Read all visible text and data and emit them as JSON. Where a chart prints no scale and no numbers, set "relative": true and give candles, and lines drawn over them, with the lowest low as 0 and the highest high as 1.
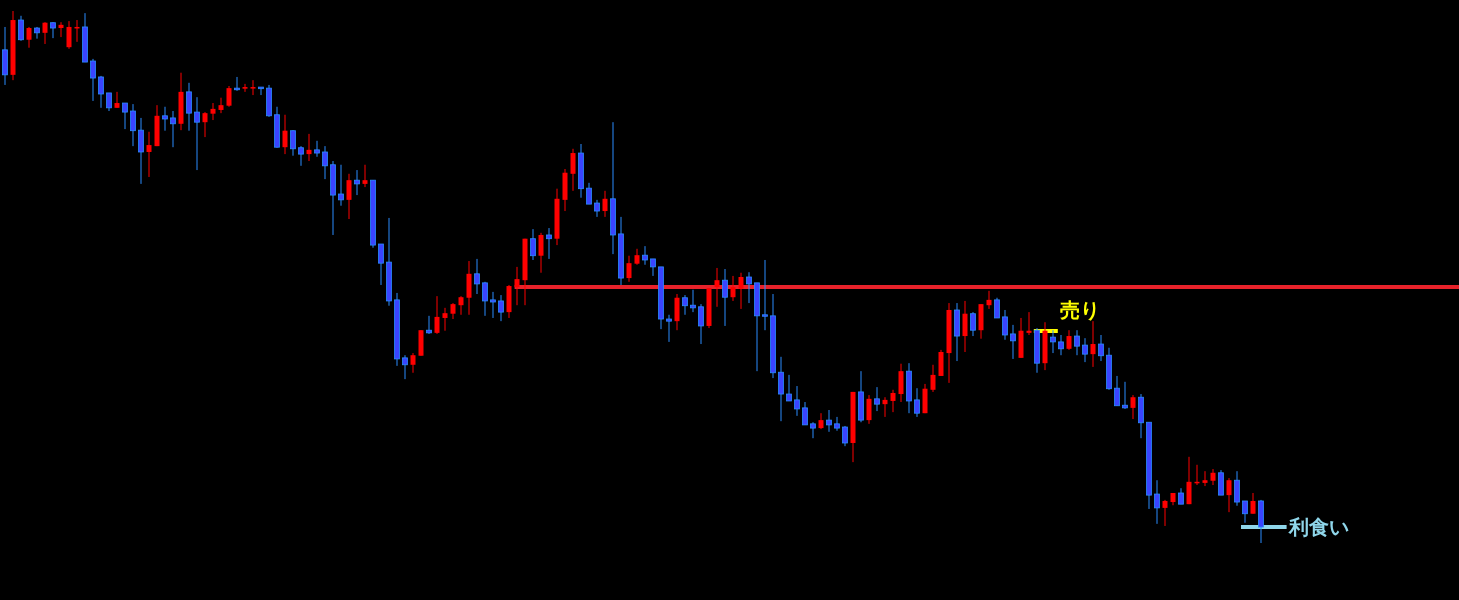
{
  "chart_data": {
    "type": "candlestick",
    "relative": true,
    "categories": [
      null,
      null,
      null,
      null,
      null,
      null,
      null,
      null,
      null,
      null,
      null,
      null,
      null,
      null,
      null,
      null,
      null,
      null,
      null,
      null,
      null,
      null,
      null,
      null,
      null,
      null,
      null,
      null,
      null,
      null,
      null,
      null,
      null,
      null,
      null,
      null,
      null,
      null,
      null,
      null,
      null,
      null,
      null,
      null,
      null,
      null,
      null,
      null,
      null,
      null,
      null,
      null,
      null,
      null,
      null,
      null,
      null,
      null,
      null,
      null,
      null,
      null,
      null,
      null,
      null,
      null,
      null,
      null,
      null,
      null,
      null,
      null,
      null,
      null,
      null,
      null,
      null,
      null,
      null,
      null,
      null,
      null,
      null,
      null,
      null,
      null,
      null,
      null,
      null,
      null,
      null,
      null,
      null,
      null,
      null,
      null,
      null,
      null,
      null,
      null,
      null,
      null,
      null,
      null,
      null,
      null,
      null,
      null,
      null,
      null,
      null,
      null,
      null,
      null,
      null,
      null,
      null,
      null,
      null,
      null,
      null,
      null,
      null,
      null,
      null,
      null,
      null,
      null,
      null,
      null,
      null,
      null,
      null,
      null,
      null,
      null,
      null,
      null,
      null,
      null,
      null,
      null,
      null,
      null,
      null,
      null,
      null,
      null,
      null,
      null,
      null,
      null,
      null,
      null,
      null,
      null,
      null,
      null
    ],
    "ohlc": [
      [
        0.927,
        0.97,
        0.861,
        0.88
      ],
      [
        0.88,
        1.0,
        0.87,
        0.983
      ],
      [
        0.983,
        0.991,
        0.944,
        0.946
      ],
      [
        0.946,
        0.97,
        0.931,
        0.968
      ],
      [
        0.968,
        0.97,
        0.948,
        0.959
      ],
      [
        0.959,
        0.979,
        0.938,
        0.978
      ],
      [
        0.978,
        0.979,
        0.949,
        0.968
      ],
      [
        0.968,
        0.979,
        0.951,
        0.974
      ],
      [
        0.932,
        0.981,
        0.929,
        0.97
      ],
      [
        0.968,
        0.983,
        0.942,
        0.97
      ],
      [
        0.97,
        0.996,
        0.904,
        0.904
      ],
      [
        0.906,
        0.91,
        0.831,
        0.874
      ],
      [
        0.876,
        0.878,
        0.818,
        0.844
      ],
      [
        0.846,
        0.846,
        0.812,
        0.818
      ],
      [
        0.818,
        0.848,
        0.818,
        0.827
      ],
      [
        0.827,
        0.827,
        0.778,
        0.81
      ],
      [
        0.812,
        0.825,
        0.746,
        0.775
      ],
      [
        0.776,
        0.799,
        0.675,
        0.735
      ],
      [
        0.735,
        0.773,
        0.688,
        0.748
      ],
      [
        0.746,
        0.823,
        0.746,
        0.803
      ],
      [
        0.803,
        0.82,
        0.775,
        0.797
      ],
      [
        0.799,
        0.812,
        0.744,
        0.788
      ],
      [
        0.788,
        0.884,
        0.776,
        0.848
      ],
      [
        0.848,
        0.865,
        0.775,
        0.808
      ],
      [
        0.81,
        0.838,
        0.701,
        0.791
      ],
      [
        0.791,
        0.81,
        0.763,
        0.808
      ],
      [
        0.807,
        0.827,
        0.795,
        0.816
      ],
      [
        0.814,
        0.837,
        0.808,
        0.823
      ],
      [
        0.822,
        0.859,
        0.82,
        0.855
      ],
      [
        0.855,
        0.876,
        0.85,
        0.852
      ],
      [
        0.854,
        0.863,
        0.848,
        0.857
      ],
      [
        0.855,
        0.87,
        0.842,
        0.857
      ],
      [
        0.857,
        0.857,
        0.842,
        0.854
      ],
      [
        0.855,
        0.861,
        0.801,
        0.803
      ],
      [
        0.805,
        0.82,
        0.743,
        0.744
      ],
      [
        0.744,
        0.805,
        0.731,
        0.775
      ],
      [
        0.775,
        0.776,
        0.728,
        0.741
      ],
      [
        0.743,
        0.746,
        0.709,
        0.731
      ],
      [
        0.731,
        0.769,
        0.718,
        0.739
      ],
      [
        0.739,
        0.756,
        0.726,
        0.733
      ],
      [
        0.735,
        0.746,
        0.684,
        0.709
      ],
      [
        0.711,
        0.718,
        0.579,
        0.654
      ],
      [
        0.656,
        0.711,
        0.634,
        0.645
      ],
      [
        0.645,
        0.694,
        0.609,
        0.682
      ],
      [
        0.682,
        0.701,
        0.654,
        0.675
      ],
      [
        0.675,
        0.711,
        0.669,
        0.682
      ],
      [
        0.682,
        0.682,
        0.555,
        0.56
      ],
      [
        0.562,
        0.562,
        0.485,
        0.526
      ],
      [
        0.528,
        0.611,
        0.446,
        0.455
      ],
      [
        0.457,
        0.47,
        0.333,
        0.346
      ],
      [
        0.348,
        0.353,
        0.308,
        0.335
      ],
      [
        0.335,
        0.357,
        0.32,
        0.353
      ],
      [
        0.352,
        0.4,
        0.352,
        0.4
      ],
      [
        0.4,
        0.427,
        0.393,
        0.395
      ],
      [
        0.395,
        0.464,
        0.393,
        0.425
      ],
      [
        0.423,
        0.442,
        0.399,
        0.432
      ],
      [
        0.431,
        0.451,
        0.421,
        0.449
      ],
      [
        0.447,
        0.464,
        0.429,
        0.462
      ],
      [
        0.461,
        0.53,
        0.429,
        0.506
      ],
      [
        0.506,
        0.534,
        0.468,
        0.487
      ],
      [
        0.489,
        0.491,
        0.427,
        0.455
      ],
      [
        0.457,
        0.472,
        0.423,
        0.453
      ],
      [
        0.455,
        0.466,
        0.417,
        0.434
      ],
      [
        0.434,
        0.485,
        0.423,
        0.483
      ],
      [
        0.481,
        0.519,
        0.447,
        0.496
      ],
      [
        0.494,
        0.572,
        0.447,
        0.572
      ],
      [
        0.572,
        0.59,
        0.532,
        0.54
      ],
      [
        0.54,
        0.583,
        0.508,
        0.579
      ],
      [
        0.579,
        0.592,
        0.534,
        0.572
      ],
      [
        0.572,
        0.666,
        0.56,
        0.647
      ],
      [
        0.645,
        0.703,
        0.624,
        0.696
      ],
      [
        0.694,
        0.741,
        0.662,
        0.733
      ],
      [
        0.733,
        0.75,
        0.649,
        0.666
      ],
      [
        0.667,
        0.677,
        0.637,
        0.637
      ],
      [
        0.639,
        0.645,
        0.613,
        0.624
      ],
      [
        0.624,
        0.662,
        0.613,
        0.647
      ],
      [
        0.647,
        0.791,
        0.543,
        0.579
      ],
      [
        0.581,
        0.613,
        0.485,
        0.498
      ],
      [
        0.498,
        0.54,
        0.491,
        0.526
      ],
      [
        0.525,
        0.553,
        0.523,
        0.541
      ],
      [
        0.541,
        0.558,
        0.523,
        0.532
      ],
      [
        0.534,
        0.534,
        0.502,
        0.519
      ],
      [
        0.519,
        0.519,
        0.402,
        0.421
      ],
      [
        0.421,
        0.429,
        0.378,
        0.417
      ],
      [
        0.417,
        0.468,
        0.4,
        0.461
      ],
      [
        0.461,
        0.466,
        0.429,
        0.446
      ],
      [
        0.447,
        0.476,
        0.434,
        0.442
      ],
      [
        0.444,
        0.449,
        0.374,
        0.408
      ],
      [
        0.408,
        0.479,
        0.404,
        0.479
      ],
      [
        0.481,
        0.517,
        0.444,
        0.494
      ],
      [
        0.494,
        0.515,
        0.408,
        0.462
      ],
      [
        0.462,
        0.502,
        0.455,
        0.481
      ],
      [
        0.478,
        0.508,
        0.44,
        0.5
      ],
      [
        0.5,
        0.509,
        0.451,
        0.487
      ],
      [
        0.489,
        0.489,
        0.323,
        0.427
      ],
      [
        0.429,
        0.532,
        0.4,
        0.427
      ],
      [
        0.427,
        0.468,
        0.31,
        0.32
      ],
      [
        0.321,
        0.35,
        0.229,
        0.28
      ],
      [
        0.28,
        0.316,
        0.267,
        0.267
      ],
      [
        0.269,
        0.295,
        0.239,
        0.252
      ],
      [
        0.254,
        0.265,
        0.222,
        0.222
      ],
      [
        0.224,
        0.227,
        0.197,
        0.216
      ],
      [
        0.216,
        0.244,
        0.214,
        0.231
      ],
      [
        0.231,
        0.25,
        0.209,
        0.222
      ],
      [
        0.224,
        0.237,
        0.211,
        0.216
      ],
      [
        0.218,
        0.22,
        0.182,
        0.188
      ],
      [
        0.188,
        0.284,
        0.152,
        0.284
      ],
      [
        0.284,
        0.323,
        0.227,
        0.231
      ],
      [
        0.231,
        0.278,
        0.224,
        0.271
      ],
      [
        0.271,
        0.293,
        0.248,
        0.261
      ],
      [
        0.261,
        0.274,
        0.237,
        0.269
      ],
      [
        0.267,
        0.288,
        0.246,
        0.282
      ],
      [
        0.28,
        0.337,
        0.265,
        0.323
      ],
      [
        0.323,
        0.338,
        0.244,
        0.267
      ],
      [
        0.269,
        0.291,
        0.237,
        0.244
      ],
      [
        0.244,
        0.299,
        0.244,
        0.29
      ],
      [
        0.288,
        0.335,
        0.284,
        0.316
      ],
      [
        0.314,
        0.363,
        0.314,
        0.359
      ],
      [
        0.357,
        0.451,
        0.301,
        0.438
      ],
      [
        0.438,
        0.451,
        0.342,
        0.389
      ],
      [
        0.389,
        0.455,
        0.359,
        0.431
      ],
      [
        0.431,
        0.434,
        0.389,
        0.4
      ],
      [
        0.4,
        0.449,
        0.384,
        0.449
      ],
      [
        0.447,
        0.474,
        0.44,
        0.457
      ],
      [
        0.457,
        0.461,
        0.423,
        0.423
      ],
      [
        0.425,
        0.438,
        0.382,
        0.391
      ],
      [
        0.393,
        0.41,
        0.346,
        0.38
      ],
      [
        0.348,
        0.423,
        0.348,
        0.399
      ],
      [
        0.395,
        0.434,
        0.391,
        0.399
      ],
      [
        0.4,
        0.404,
        0.32,
        0.338
      ],
      [
        0.338,
        0.415,
        0.325,
        0.399
      ],
      [
        0.387,
        0.4,
        0.357,
        0.378
      ],
      [
        0.378,
        0.391,
        0.353,
        0.365
      ],
      [
        0.365,
        0.4,
        0.363,
        0.389
      ],
      [
        0.389,
        0.4,
        0.353,
        0.37
      ],
      [
        0.372,
        0.385,
        0.34,
        0.355
      ],
      [
        0.355,
        0.417,
        0.331,
        0.374
      ],
      [
        0.374,
        0.391,
        0.342,
        0.352
      ],
      [
        0.353,
        0.367,
        0.288,
        0.29
      ],
      [
        0.291,
        0.314,
        0.258,
        0.258
      ],
      [
        0.259,
        0.303,
        0.252,
        0.254
      ],
      [
        0.254,
        0.278,
        0.233,
        0.274
      ],
      [
        0.274,
        0.28,
        0.197,
        0.226
      ],
      [
        0.227,
        0.227,
        0.064,
        0.09
      ],
      [
        0.092,
        0.118,
        0.036,
        0.066
      ],
      [
        0.066,
        0.081,
        0.032,
        0.079
      ],
      [
        0.077,
        0.094,
        0.071,
        0.094
      ],
      [
        0.094,
        0.103,
        0.073,
        0.073
      ],
      [
        0.073,
        0.162,
        0.073,
        0.115
      ],
      [
        0.113,
        0.147,
        0.109,
        0.115
      ],
      [
        0.113,
        0.135,
        0.107,
        0.118
      ],
      [
        0.117,
        0.139,
        0.109,
        0.132
      ],
      [
        0.132,
        0.137,
        0.09,
        0.09
      ],
      [
        0.09,
        0.122,
        0.058,
        0.118
      ],
      [
        0.118,
        0.135,
        0.07,
        0.077
      ],
      [
        0.079,
        0.079,
        0.038,
        0.055
      ],
      [
        0.055,
        0.094,
        0.055,
        0.079
      ],
      [
        0.079,
        0.081,
        0.0,
        0.03
      ]
    ],
    "ref_lines": [
      {
        "axis": "y",
        "value": 0.481,
        "color": "#e8222a"
      }
    ],
    "annotations": [
      "売り",
      "利食い"
    ]
  }
}
